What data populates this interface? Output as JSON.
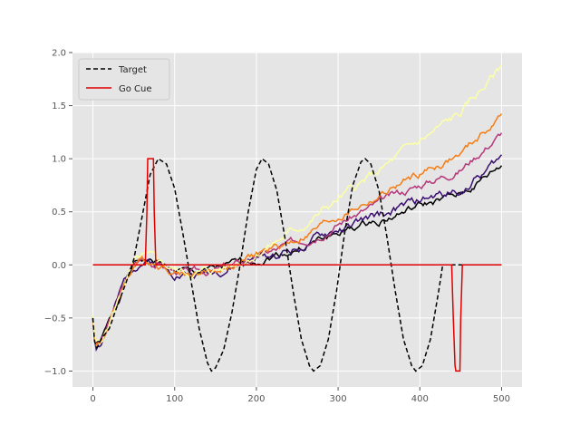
{
  "chart_data": {
    "type": "line",
    "title": "",
    "xlabel": "",
    "ylabel": "",
    "xlim": [
      -25,
      525
    ],
    "ylim": [
      -1.15,
      2.0
    ],
    "grid": true,
    "background": "#e5e5e5",
    "legend_position": "top-left",
    "x_ticks": [
      0,
      100,
      200,
      300,
      400,
      500
    ],
    "y_ticks": [
      -1.0,
      -0.5,
      0.0,
      0.5,
      1.0,
      1.5,
      2.0
    ],
    "x_tick_labels": [
      "0",
      "100",
      "200",
      "300",
      "400",
      "500"
    ],
    "y_tick_labels": [
      "−1.0",
      "−0.5",
      "0.0",
      "0.5",
      "1.0",
      "1.5",
      "2.0"
    ],
    "legend": [
      {
        "label": "Target",
        "color": "#000000",
        "dash": "dashed"
      },
      {
        "label": "Go Cue",
        "color": "#e00000",
        "dash": "solid"
      }
    ],
    "target": {
      "color": "#000000",
      "points": [
        [
          0,
          -0.5
        ],
        [
          2,
          -0.72
        ],
        [
          5,
          -0.78
        ],
        [
          10,
          -0.7
        ],
        [
          20,
          -0.6
        ],
        [
          30,
          -0.38
        ],
        [
          40,
          -0.18
        ],
        [
          50,
          0.05
        ],
        [
          60,
          0.45
        ],
        [
          70,
          0.85
        ],
        [
          80,
          1.0
        ],
        [
          90,
          0.95
        ],
        [
          100,
          0.72
        ],
        [
          110,
          0.3
        ],
        [
          120,
          -0.15
        ],
        [
          130,
          -0.6
        ],
        [
          140,
          -0.92
        ],
        [
          145,
          -1.0
        ],
        [
          150,
          -0.97
        ],
        [
          160,
          -0.8
        ],
        [
          170,
          -0.45
        ],
        [
          180,
          0.0
        ],
        [
          190,
          0.5
        ],
        [
          200,
          0.9
        ],
        [
          207,
          1.0
        ],
        [
          215,
          0.95
        ],
        [
          225,
          0.7
        ],
        [
          235,
          0.25
        ],
        [
          245,
          -0.25
        ],
        [
          255,
          -0.7
        ],
        [
          265,
          -0.95
        ],
        [
          270,
          -1.0
        ],
        [
          278,
          -0.95
        ],
        [
          288,
          -0.7
        ],
        [
          298,
          -0.25
        ],
        [
          308,
          0.3
        ],
        [
          318,
          0.75
        ],
        [
          328,
          0.97
        ],
        [
          333,
          1.0
        ],
        [
          340,
          0.95
        ],
        [
          350,
          0.7
        ],
        [
          360,
          0.25
        ],
        [
          370,
          -0.25
        ],
        [
          380,
          -0.7
        ],
        [
          390,
          -0.95
        ],
        [
          395,
          -1.0
        ],
        [
          403,
          -0.95
        ],
        [
          413,
          -0.7
        ],
        [
          423,
          -0.25
        ],
        [
          428,
          0.0
        ],
        [
          500,
          0.0
        ]
      ]
    },
    "go_cue": {
      "color": "#e00000",
      "points": [
        [
          0,
          0.0
        ],
        [
          64,
          0.0
        ],
        [
          66,
          0.5
        ],
        [
          67,
          1.0
        ],
        [
          74,
          1.0
        ],
        [
          75,
          0.5
        ],
        [
          77,
          0.0
        ],
        [
          439,
          0.0
        ],
        [
          441,
          -0.5
        ],
        [
          443,
          -0.95
        ],
        [
          444,
          -1.0
        ],
        [
          449,
          -1.0
        ],
        [
          450,
          -0.5
        ],
        [
          452,
          0.0
        ],
        [
          500,
          0.0
        ]
      ]
    },
    "series": [
      {
        "color": "#000000",
        "end": 0.93,
        "amp": 0.025,
        "seed": 1
      },
      {
        "color": "#3b0f70",
        "end": 1.0,
        "amp": 0.03,
        "seed": 2
      },
      {
        "color": "#b5367a",
        "end": 1.25,
        "amp": 0.025,
        "seed": 3
      },
      {
        "color": "#f57d15",
        "end": 1.4,
        "amp": 0.025,
        "seed": 4
      },
      {
        "color": "#fcffa4",
        "end": 1.87,
        "amp": 0.03,
        "seed": 5
      }
    ],
    "series_base": [
      [
        0,
        -0.5
      ],
      [
        3,
        -0.76
      ],
      [
        10,
        -0.72
      ],
      [
        20,
        -0.55
      ],
      [
        30,
        -0.35
      ],
      [
        40,
        -0.15
      ],
      [
        50,
        0.0
      ],
      [
        60,
        0.05
      ],
      [
        80,
        0.02
      ],
      [
        100,
        -0.05
      ],
      [
        120,
        -0.08
      ],
      [
        150,
        -0.05
      ],
      [
        180,
        0.0
      ],
      [
        200,
        0.05
      ],
      [
        250,
        0.15
      ],
      [
        300,
        0.3
      ],
      [
        350,
        0.42
      ],
      [
        400,
        0.55
      ],
      [
        450,
        0.65
      ],
      [
        500,
        0.93
      ]
    ]
  }
}
